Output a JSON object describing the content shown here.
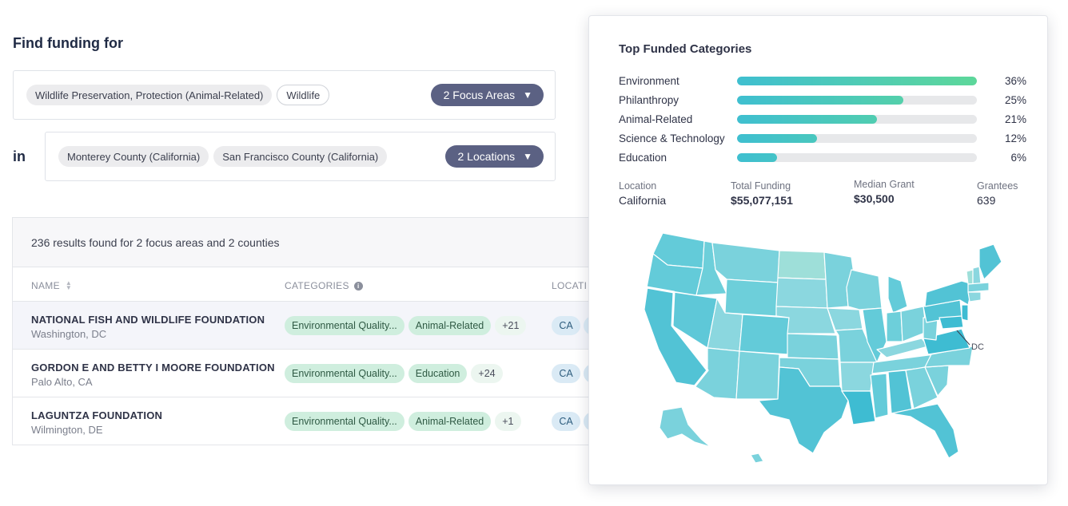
{
  "search": {
    "title": "Find funding for",
    "in_label": "in",
    "focus_areas": {
      "chips": [
        "Wildlife Preservation, Protection (Animal-Related)",
        "Wildlife"
      ],
      "button_label": "2 Focus Areas"
    },
    "locations": {
      "chips": [
        "Monterey County (California)",
        "San Francisco County (California)"
      ],
      "button_label": "2 Locations"
    }
  },
  "results": {
    "summary": "236 results found for 2 focus areas and 2 counties",
    "columns": {
      "name": "NAME",
      "categories": "CATEGORIES",
      "location": "LOCATI"
    },
    "rows": [
      {
        "name": "NATIONAL FISH AND WILDLIFE FOUNDATION",
        "location": "Washington, DC",
        "categories": [
          "Environmental Quality...",
          "Animal-Related"
        ],
        "more": "+21",
        "state": "CA"
      },
      {
        "name": "GORDON E AND BETTY I MOORE FOUNDATION",
        "location": "Palo Alto, CA",
        "categories": [
          "Environmental Quality...",
          "Education"
        ],
        "more": "+24",
        "state": "CA"
      },
      {
        "name": "LAGUNTZA FOUNDATION",
        "location": "Wilmington, DE",
        "categories": [
          "Environmental Quality...",
          "Animal-Related"
        ],
        "more": "+1",
        "state": "CA"
      }
    ]
  },
  "panel": {
    "title": "Top Funded Categories",
    "stats": {
      "location_label": "Location",
      "location_value": "California",
      "funding_label": "Total Funding",
      "funding_value": "$55,077,151",
      "median_label": "Median Grant",
      "median_value": "$30,500",
      "grantees_label": "Grantees",
      "grantees_value": "639"
    },
    "map_label": "DC"
  },
  "chart_data": {
    "type": "bar",
    "title": "Top Funded Categories",
    "categories": [
      "Environment",
      "Philanthropy",
      "Animal-Related",
      "Science & Technology",
      "Education"
    ],
    "values": [
      36,
      25,
      21,
      12,
      6
    ],
    "value_labels": [
      "36%",
      "25%",
      "21%",
      "12%",
      "6%"
    ],
    "ylim": [
      0,
      36
    ],
    "colors": {
      "start": "#3fbfd0",
      "end": "#5dd79a",
      "track": "#e7e8ea"
    }
  }
}
